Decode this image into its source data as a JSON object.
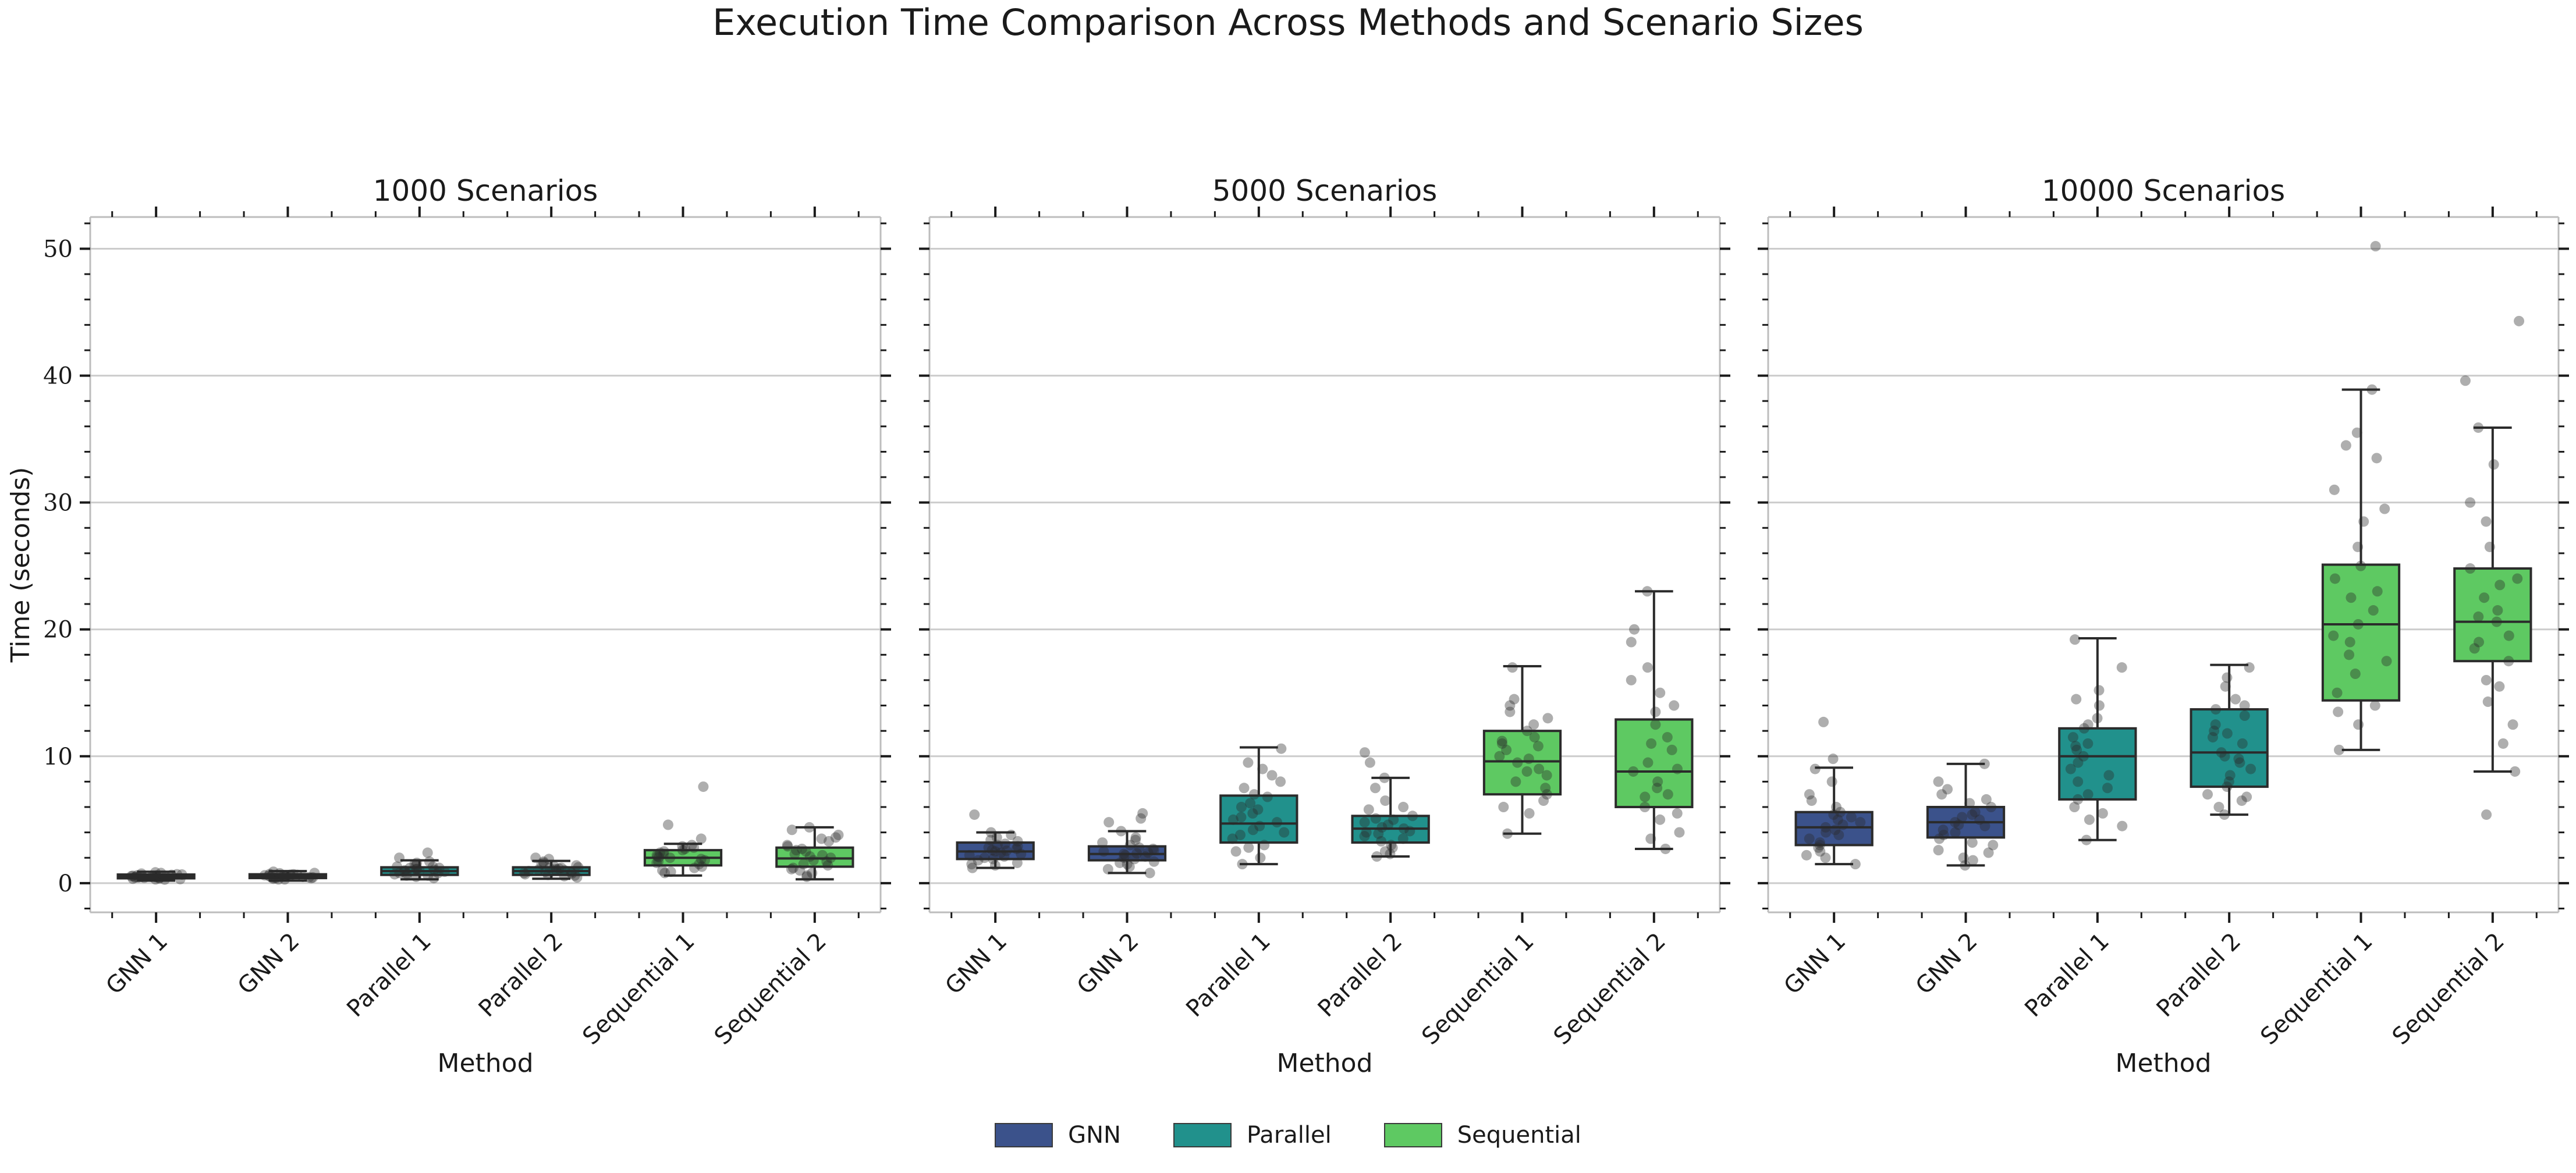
{
  "chart_data": [
    {
      "type": "box",
      "title": "1000 Scenarios",
      "xlabel": "Method",
      "ylabel": "Time (seconds)",
      "ylim": [
        -2.3,
        52.5
      ],
      "yticks": [
        0,
        10,
        20,
        30,
        40,
        50
      ],
      "grid": "y",
      "categories": [
        "GNN 1",
        "GNN 2",
        "Parallel 1",
        "Parallel 2",
        "Sequential 1",
        "Sequential 2"
      ],
      "groups": [
        "GNN",
        "GNN",
        "Parallel",
        "Parallel",
        "Sequential",
        "Sequential"
      ],
      "boxes": [
        {
          "whislo": 0.2,
          "q1": 0.38,
          "med": 0.5,
          "q3": 0.68,
          "whishi": 0.9,
          "points": [
            0.3,
            0.4,
            0.45,
            0.5,
            0.55,
            0.6,
            0.35,
            0.7,
            0.8,
            0.5,
            0.42,
            0.65,
            0.28,
            0.58,
            0.48,
            0.75,
            0.52,
            0.62,
            0.38,
            0.85,
            0.45,
            0.55,
            0.32,
            0.68,
            0.5
          ]
        },
        {
          "whislo": 0.2,
          "q1": 0.4,
          "med": 0.55,
          "q3": 0.7,
          "whishi": 0.95,
          "points": [
            0.3,
            0.45,
            0.5,
            0.55,
            0.6,
            0.65,
            0.4,
            0.72,
            0.8,
            0.52,
            0.44,
            0.66,
            0.3,
            0.58,
            0.5,
            0.78,
            0.54,
            0.62,
            0.4,
            0.9,
            0.46,
            0.57,
            0.35,
            0.7,
            0.52
          ]
        },
        {
          "whislo": 0.3,
          "q1": 0.65,
          "med": 0.95,
          "q3": 1.25,
          "whishi": 1.8,
          "points": [
            0.4,
            0.6,
            0.8,
            1.0,
            1.1,
            1.3,
            0.7,
            1.5,
            1.7,
            2.4,
            0.9,
            1.2,
            0.5,
            1.0,
            1.4,
            0.8,
            1.6,
            1.1,
            0.6,
            0.95,
            1.3,
            2.0,
            0.75,
            1.05,
            1.2
          ]
        },
        {
          "whislo": 0.35,
          "q1": 0.65,
          "med": 0.95,
          "q3": 1.25,
          "whishi": 1.75,
          "points": [
            0.45,
            0.6,
            0.85,
            1.0,
            1.15,
            1.3,
            0.7,
            1.5,
            1.7,
            2.0,
            0.9,
            1.2,
            0.55,
            1.05,
            1.4,
            0.8,
            1.6,
            1.1,
            0.65,
            0.95,
            1.25,
            1.9,
            0.75,
            1.0,
            1.2
          ]
        },
        {
          "whislo": 0.6,
          "q1": 1.4,
          "med": 2.0,
          "q3": 2.6,
          "whishi": 3.1,
          "points": [
            1.0,
            1.5,
            1.8,
            2.0,
            2.2,
            2.5,
            1.2,
            2.8,
            3.0,
            7.6,
            4.6,
            3.5,
            0.8,
            2.1,
            2.4,
            1.6,
            2.7,
            1.9,
            1.3,
            2.3,
            2.6,
            1.7,
            0.9,
            2.9,
            2.05
          ]
        },
        {
          "whislo": 0.3,
          "q1": 1.3,
          "med": 1.95,
          "q3": 2.8,
          "whishi": 4.4,
          "points": [
            0.5,
            1.0,
            1.5,
            2.0,
            2.3,
            2.6,
            3.0,
            3.5,
            4.2,
            4.4,
            1.2,
            1.8,
            2.1,
            2.9,
            3.3,
            0.8,
            1.4,
            2.5,
            3.8,
            1.7,
            2.2,
            2.7,
            0.6,
            1.1,
            3.6
          ]
        }
      ]
    },
    {
      "type": "box",
      "title": "5000 Scenarios",
      "xlabel": "Method",
      "ylim": [
        -2.3,
        52.5
      ],
      "yticks": [
        0,
        10,
        20,
        30,
        40,
        50
      ],
      "grid": "y",
      "categories": [
        "GNN 1",
        "GNN 2",
        "Parallel 1",
        "Parallel 2",
        "Sequential 1",
        "Sequential 2"
      ],
      "groups": [
        "GNN",
        "GNN",
        "Parallel",
        "Parallel",
        "Sequential",
        "Sequential"
      ],
      "boxes": [
        {
          "whislo": 1.2,
          "q1": 1.9,
          "med": 2.5,
          "q3": 3.2,
          "whishi": 4.0,
          "points": [
            1.2,
            1.5,
            1.8,
            2.0,
            2.2,
            2.4,
            2.6,
            2.8,
            3.0,
            3.3,
            3.6,
            4.0,
            5.4,
            1.6,
            2.1,
            2.5,
            2.9,
            3.1,
            1.9,
            2.3,
            2.7,
            3.4,
            1.4,
            2.55,
            3.8
          ]
        },
        {
          "whislo": 0.8,
          "q1": 1.8,
          "med": 2.3,
          "q3": 2.9,
          "whishi": 4.1,
          "points": [
            0.8,
            1.3,
            1.7,
            1.9,
            2.1,
            2.3,
            2.5,
            2.7,
            3.0,
            3.4,
            4.1,
            5.1,
            5.5,
            1.5,
            2.0,
            2.4,
            2.8,
            3.2,
            1.6,
            2.2,
            2.6,
            3.6,
            1.1,
            2.35,
            4.8
          ]
        },
        {
          "whislo": 1.5,
          "q1": 3.2,
          "med": 4.7,
          "q3": 6.9,
          "whishi": 10.7,
          "points": [
            1.5,
            2.0,
            2.8,
            3.5,
            4.0,
            4.5,
            5.0,
            5.5,
            6.0,
            6.8,
            7.5,
            8.5,
            9.5,
            10.6,
            3.0,
            4.2,
            4.8,
            5.2,
            6.3,
            7.0,
            8.0,
            9.0,
            2.5,
            3.8,
            5.8
          ]
        },
        {
          "whislo": 2.1,
          "q1": 3.2,
          "med": 4.3,
          "q3": 5.3,
          "whishi": 8.3,
          "points": [
            2.1,
            2.5,
            3.0,
            3.3,
            3.7,
            4.0,
            4.3,
            4.6,
            5.0,
            5.3,
            5.8,
            6.5,
            7.5,
            8.3,
            10.3,
            9.5,
            3.5,
            4.1,
            4.8,
            2.8,
            3.9,
            4.4,
            5.1,
            6.0,
            2.3
          ]
        },
        {
          "whislo": 3.9,
          "q1": 7.0,
          "med": 9.6,
          "q3": 12.0,
          "whishi": 17.1,
          "points": [
            3.9,
            5.5,
            6.5,
            7.0,
            8.0,
            8.5,
            9.0,
            9.5,
            10.0,
            10.5,
            11.0,
            11.5,
            12.0,
            13.0,
            14.0,
            14.5,
            17.0,
            6.0,
            7.5,
            9.8,
            10.8,
            12.5,
            13.5,
            8.8,
            11.2
          ]
        },
        {
          "whislo": 2.7,
          "q1": 6.0,
          "med": 8.8,
          "q3": 12.9,
          "whishi": 23.0,
          "points": [
            2.7,
            4.0,
            5.0,
            6.0,
            6.8,
            7.5,
            8.0,
            8.8,
            9.5,
            10.5,
            11.5,
            12.5,
            13.5,
            15.0,
            17.0,
            19.0,
            20.0,
            23.0,
            5.5,
            7.0,
            9.0,
            11.0,
            14.0,
            3.5,
            16.0
          ]
        }
      ]
    },
    {
      "type": "box",
      "title": "10000 Scenarios",
      "xlabel": "Method",
      "ylim": [
        -2.3,
        52.5
      ],
      "yticks": [
        0,
        10,
        20,
        30,
        40,
        50
      ],
      "grid": "y",
      "categories": [
        "GNN 1",
        "GNN 2",
        "Parallel 1",
        "Parallel 2",
        "Sequential 1",
        "Sequential 2"
      ],
      "groups": [
        "GNN",
        "GNN",
        "Parallel",
        "Parallel",
        "Sequential",
        "Sequential"
      ],
      "boxes": [
        {
          "whislo": 1.5,
          "q1": 3.0,
          "med": 4.4,
          "q3": 5.6,
          "whishi": 9.1,
          "points": [
            1.5,
            2.0,
            2.5,
            3.0,
            3.5,
            4.0,
            4.4,
            4.8,
            5.2,
            5.6,
            6.0,
            7.0,
            8.0,
            9.0,
            9.8,
            12.7,
            3.2,
            4.2,
            5.0,
            2.8,
            3.8,
            4.6,
            5.4,
            6.5,
            2.2
          ]
        },
        {
          "whislo": 1.4,
          "q1": 3.6,
          "med": 4.8,
          "q3": 6.0,
          "whishi": 9.4,
          "points": [
            1.4,
            2.0,
            2.6,
            3.2,
            3.8,
            4.2,
            4.8,
            5.2,
            5.6,
            6.0,
            6.6,
            7.4,
            8.0,
            9.4,
            3.0,
            4.5,
            5.0,
            6.3,
            2.4,
            3.5,
            4.0,
            5.4,
            7.0,
            1.8,
            4.6
          ]
        },
        {
          "whislo": 3.4,
          "q1": 6.6,
          "med": 10.0,
          "q3": 12.2,
          "whishi": 19.3,
          "points": [
            3.4,
            4.5,
            5.5,
            6.6,
            7.5,
            8.5,
            9.0,
            10.0,
            10.5,
            11.0,
            11.5,
            12.2,
            13.0,
            14.0,
            15.2,
            17.0,
            19.2,
            5.0,
            6.0,
            8.0,
            9.5,
            12.5,
            14.5,
            7.0,
            10.8
          ]
        },
        {
          "whislo": 5.4,
          "q1": 7.6,
          "med": 10.3,
          "q3": 13.7,
          "whishi": 17.2,
          "points": [
            5.4,
            6.0,
            6.8,
            7.6,
            8.5,
            9.0,
            9.8,
            10.3,
            11.0,
            11.8,
            12.5,
            13.2,
            13.7,
            14.5,
            15.5,
            16.2,
            17.0,
            7.0,
            8.0,
            10.0,
            12.0,
            14.0,
            9.5,
            11.5,
            6.5
          ]
        },
        {
          "whislo": 10.5,
          "q1": 14.4,
          "med": 20.4,
          "q3": 25.1,
          "whishi": 38.9,
          "points": [
            10.5,
            12.5,
            14.0,
            15.0,
            16.5,
            18.0,
            19.5,
            20.4,
            21.5,
            22.5,
            24.0,
            25.0,
            26.5,
            28.5,
            31.0,
            33.5,
            35.5,
            38.9,
            50.2,
            13.5,
            17.5,
            23.0,
            29.5,
            34.5,
            19.0
          ]
        },
        {
          "whislo": 8.8,
          "q1": 17.5,
          "med": 20.6,
          "q3": 24.8,
          "whishi": 35.9,
          "points": [
            5.4,
            8.8,
            11.0,
            12.5,
            14.3,
            16.0,
            17.5,
            18.5,
            19.5,
            20.6,
            21.5,
            22.5,
            23.5,
            24.8,
            26.5,
            28.5,
            30.0,
            33.0,
            35.9,
            39.6,
            44.3,
            15.5,
            19.0,
            21.0,
            24.0
          ]
        }
      ]
    }
  ],
  "figure": {
    "title": "Execution Time Comparison Across Methods and Scenario Sizes"
  },
  "legend": [
    {
      "label": "GNN",
      "color": "#3b528b"
    },
    {
      "label": "Parallel",
      "color": "#21918c"
    },
    {
      "label": "Sequential",
      "color": "#5ec962"
    }
  ],
  "colors": {
    "GNN": "#3b528b",
    "Parallel": "#21918c",
    "Sequential": "#5ec962",
    "grid": "#cccccc",
    "points": "#2b2b2b"
  }
}
